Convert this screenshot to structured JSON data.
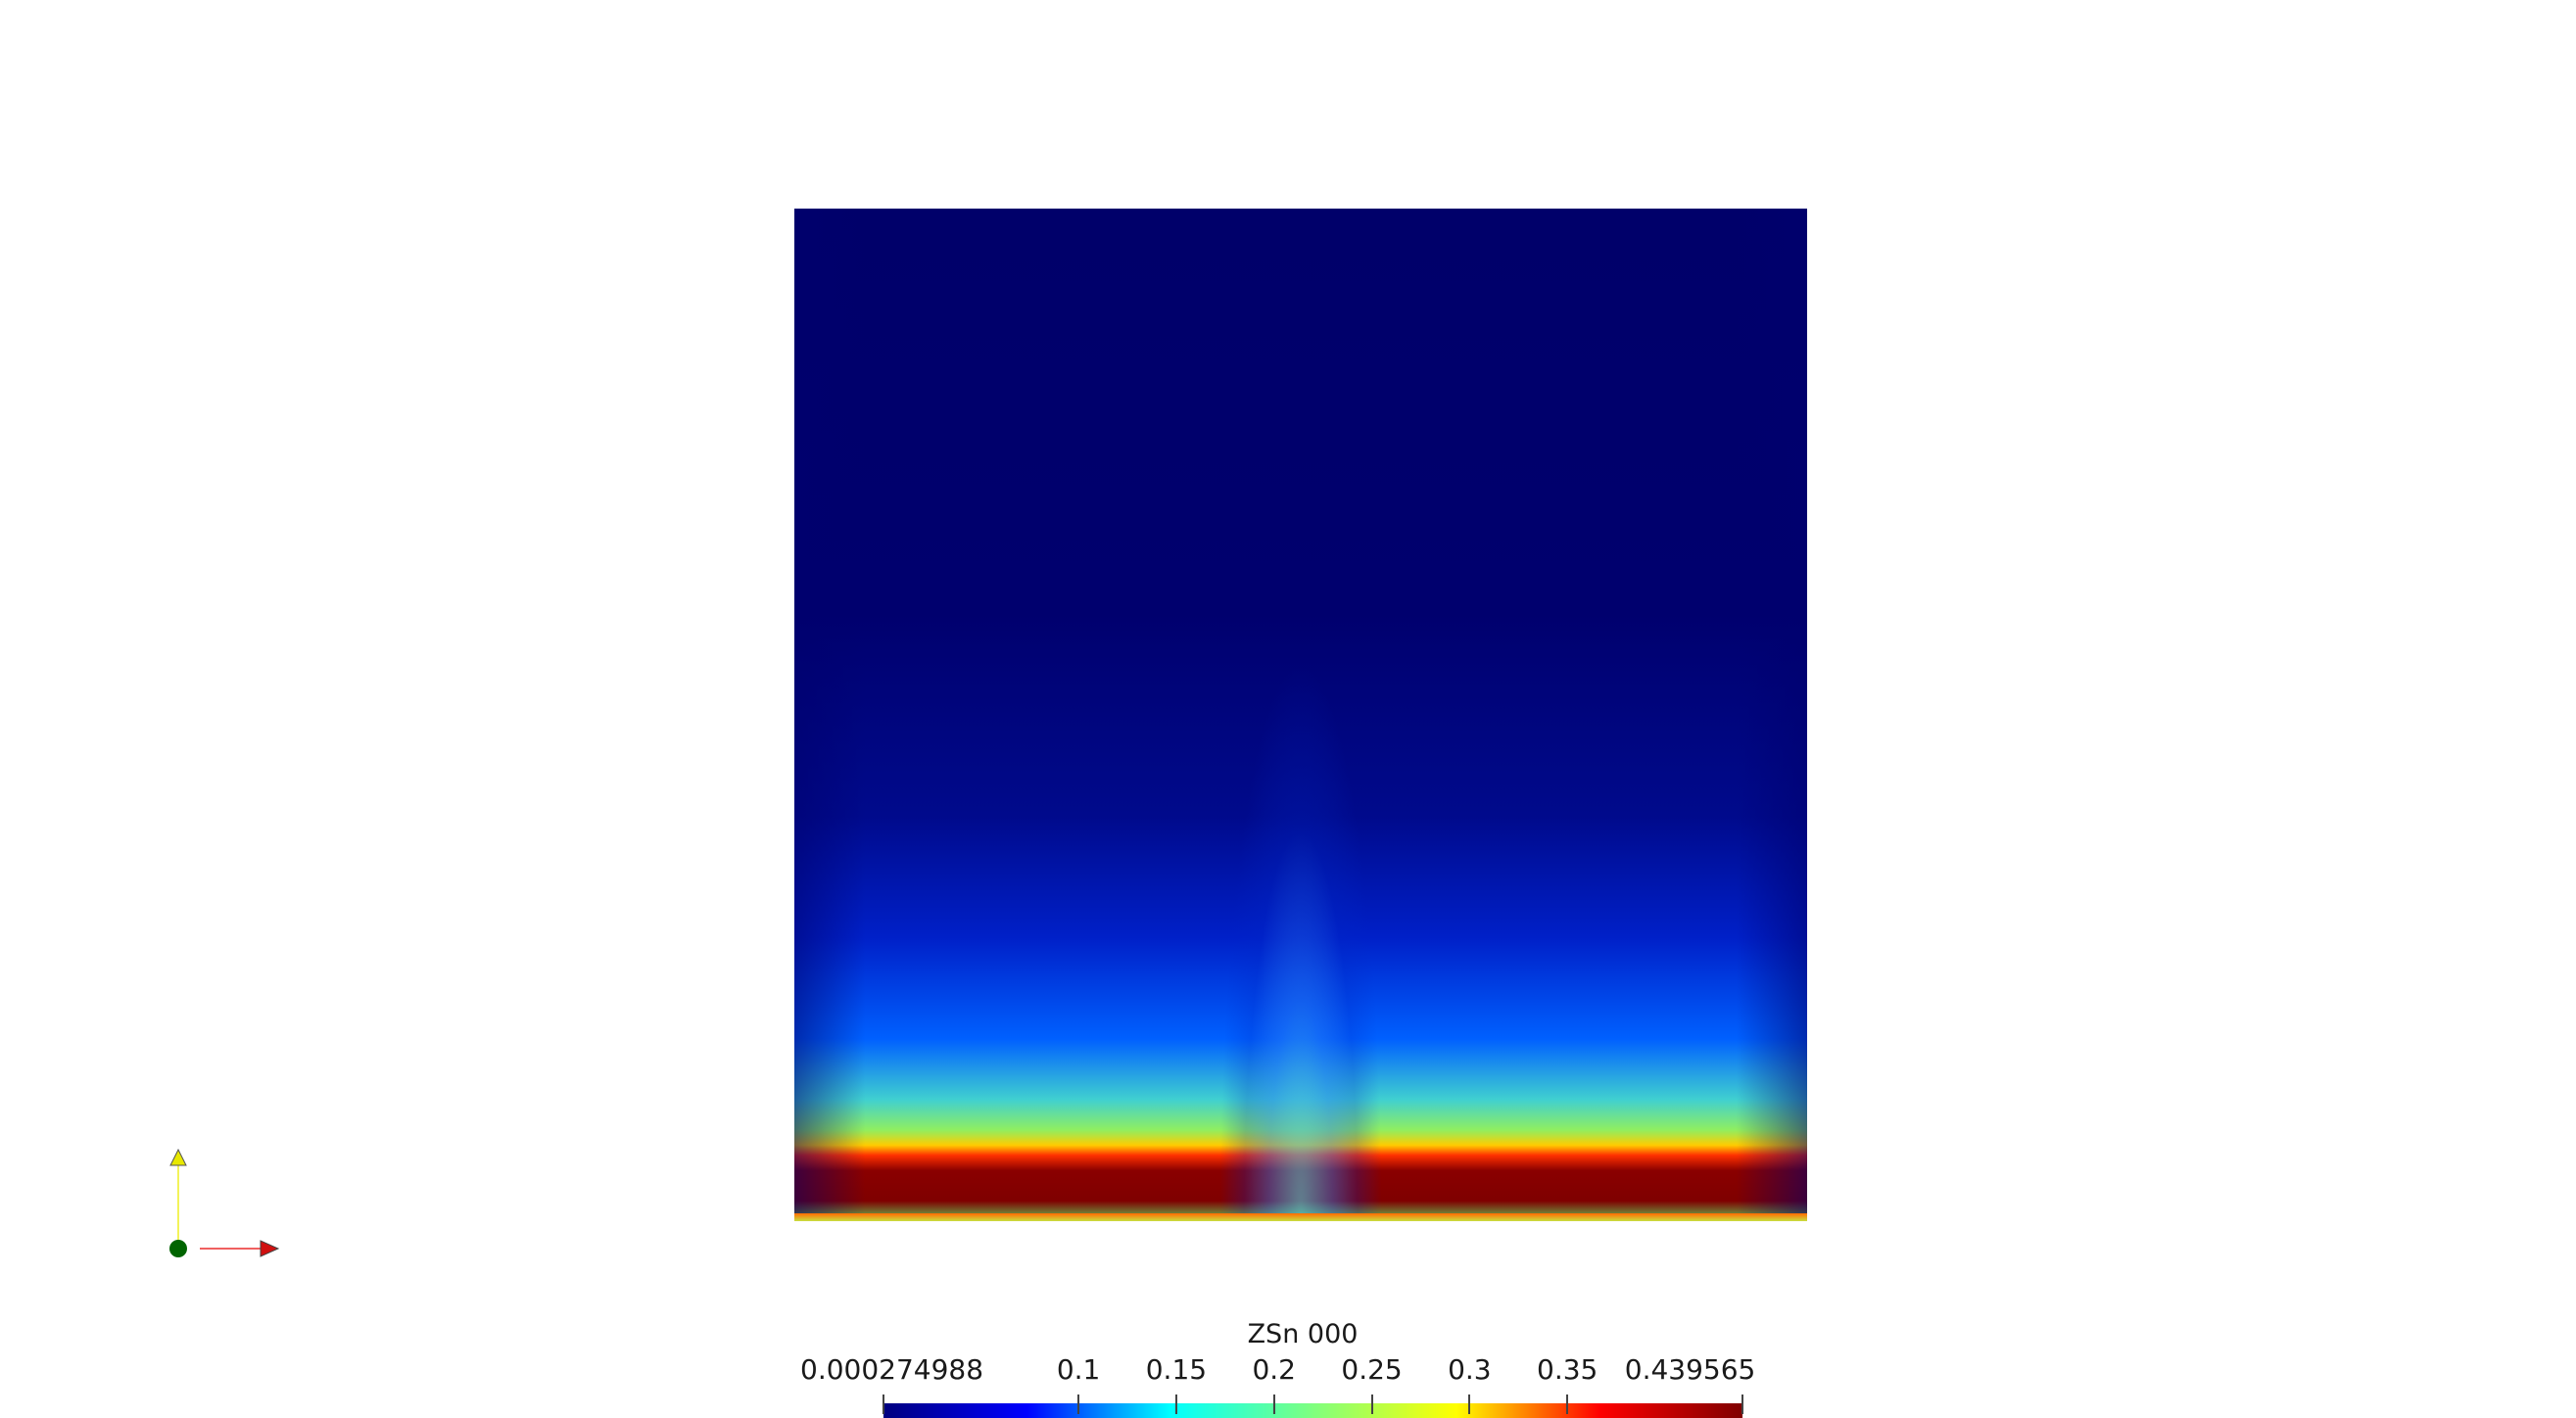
{
  "scalar_bar": {
    "title": "ZSn 000",
    "min_label": "0.000274988",
    "max_label": "0.439565",
    "min_value": 0.000274988,
    "max_value": 0.439565,
    "ticks": [
      {
        "label": "0.1",
        "value": 0.1
      },
      {
        "label": "0.15",
        "value": 0.15
      },
      {
        "label": "0.2",
        "value": 0.2
      },
      {
        "label": "0.25",
        "value": 0.25
      },
      {
        "label": "0.3",
        "value": 0.3
      },
      {
        "label": "0.35",
        "value": 0.35
      }
    ],
    "colormap": [
      "#00007f",
      "#0000ff",
      "#00ffff",
      "#7fff7f",
      "#ffff00",
      "#ff0000",
      "#7f0000"
    ]
  },
  "orientation_axes": {
    "x_color": "#d01010",
    "y_color": "#e8e800",
    "z_color": "#006400"
  }
}
